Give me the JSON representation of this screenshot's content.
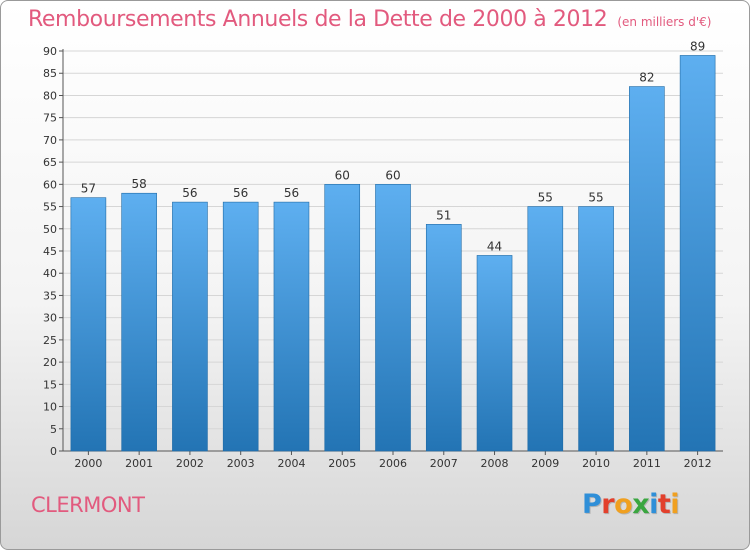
{
  "title": "Remboursements Annuels de la Dette de 2000 à 2012",
  "unit_note": "(en milliers d'€)",
  "city": "CLERMONT",
  "logo": {
    "name": "Proxiti",
    "letters": [
      {
        "char": "P",
        "color": "#2f8fd8"
      },
      {
        "char": "r",
        "color": "#e2402c"
      },
      {
        "char": "o",
        "color": "#f0a020"
      },
      {
        "char": "x",
        "color": "#3aa640"
      },
      {
        "char": "i",
        "color": "#2f8fd8"
      },
      {
        "char": "t",
        "color": "#e2402c"
      },
      {
        "char": "i",
        "color": "#f0a020"
      }
    ]
  },
  "colors": {
    "accent": "#e25a7e",
    "bar_top": "#5eaff0",
    "bar_bottom": "#2374b4",
    "grid": "#d6d6d6",
    "axis_text": "#333333"
  },
  "chart_data": {
    "type": "bar",
    "title": "Remboursements Annuels de la Dette de 2000 à 2012",
    "subtitle": "(en milliers d'€)",
    "categories": [
      "2000",
      "2001",
      "2002",
      "2003",
      "2004",
      "2005",
      "2006",
      "2007",
      "2008",
      "2009",
      "2010",
      "2011",
      "2012"
    ],
    "values": [
      57,
      58,
      56,
      56,
      56,
      60,
      60,
      51,
      44,
      55,
      55,
      82,
      89
    ],
    "ylim": [
      0,
      90
    ],
    "yticks": [
      0,
      5,
      10,
      15,
      20,
      25,
      30,
      35,
      40,
      45,
      50,
      55,
      60,
      65,
      70,
      75,
      80,
      85,
      90
    ],
    "grid": true,
    "data_labels": true,
    "legend": "none"
  }
}
